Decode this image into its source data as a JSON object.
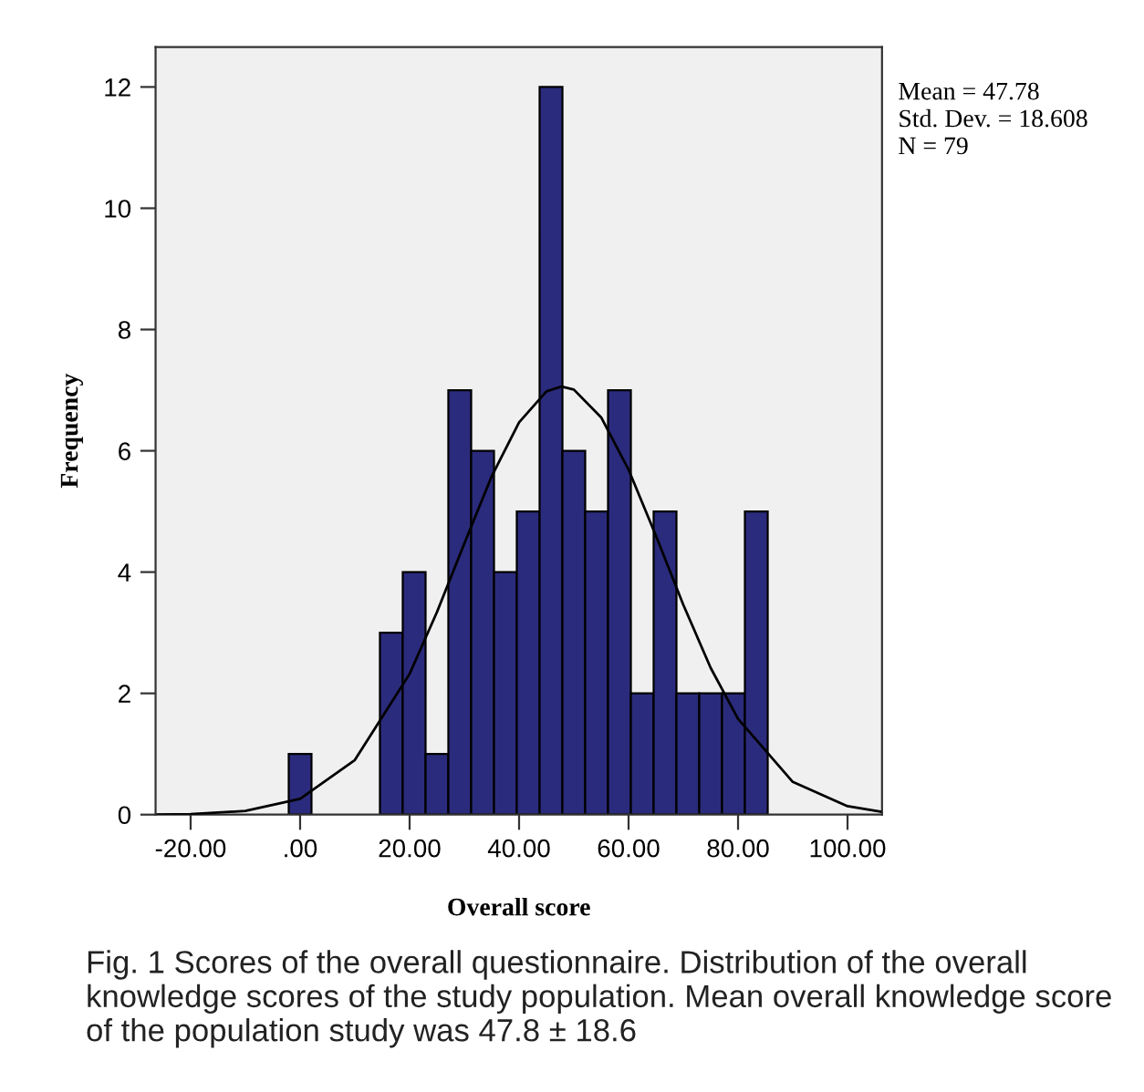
{
  "chart_data": {
    "type": "histogram",
    "xlabel": "Overall score",
    "ylabel": "Frequency",
    "bins": [
      -2.08,
      2.08,
      6.25,
      10.42,
      14.58,
      18.75,
      22.92,
      27.08,
      31.25,
      35.42,
      39.58,
      43.75,
      47.92,
      52.08,
      56.25,
      60.42,
      64.58,
      68.75,
      72.92,
      77.08,
      81.25,
      85.42
    ],
    "values": [
      1,
      0,
      0,
      0,
      3,
      4,
      1,
      7,
      6,
      4,
      5,
      12,
      6,
      5,
      7,
      2,
      5,
      2,
      2,
      2,
      5
    ],
    "color": "#2b2b7d",
    "series": [
      {
        "type": "line",
        "color": "#000000",
        "x": [
          -26,
          -20,
          -10,
          0,
          10,
          20,
          25,
          30,
          35,
          40,
          45,
          47.78,
          50,
          55,
          60,
          65,
          70,
          75,
          80,
          90,
          100,
          106
        ],
        "values": [
          0.0,
          0.01,
          0.06,
          0.26,
          0.9,
          2.32,
          3.34,
          4.47,
          5.58,
          6.47,
          6.98,
          7.06,
          7.01,
          6.55,
          5.69,
          4.6,
          3.46,
          2.42,
          1.58,
          0.54,
          0.14,
          0.05
        ]
      }
    ],
    "xlim": [
      -26.4,
      106.3
    ],
    "ylim": [
      0,
      12.66
    ],
    "xticks": [
      {
        "value": -20,
        "label": "-20.00"
      },
      {
        "value": 0,
        "label": ".00"
      },
      {
        "value": 20,
        "label": "20.00"
      },
      {
        "value": 40,
        "label": "40.00"
      },
      {
        "value": 60,
        "label": "60.00"
      },
      {
        "value": 80,
        "label": "80.00"
      },
      {
        "value": 100,
        "label": "100.00"
      }
    ],
    "yticks": [
      0,
      2,
      4,
      6,
      8,
      10,
      12
    ],
    "grid": false,
    "legend": false,
    "annotations": [
      "Mean = 47.78",
      "Std. Dev. = 18.608",
      "N = 79",
      "Fig. 1 Scores of the overall questionnaire. Distribution of the overall knowledge scores of the study population. Mean overall knowledge score of the population study was 47.8 ± 18.6"
    ]
  }
}
